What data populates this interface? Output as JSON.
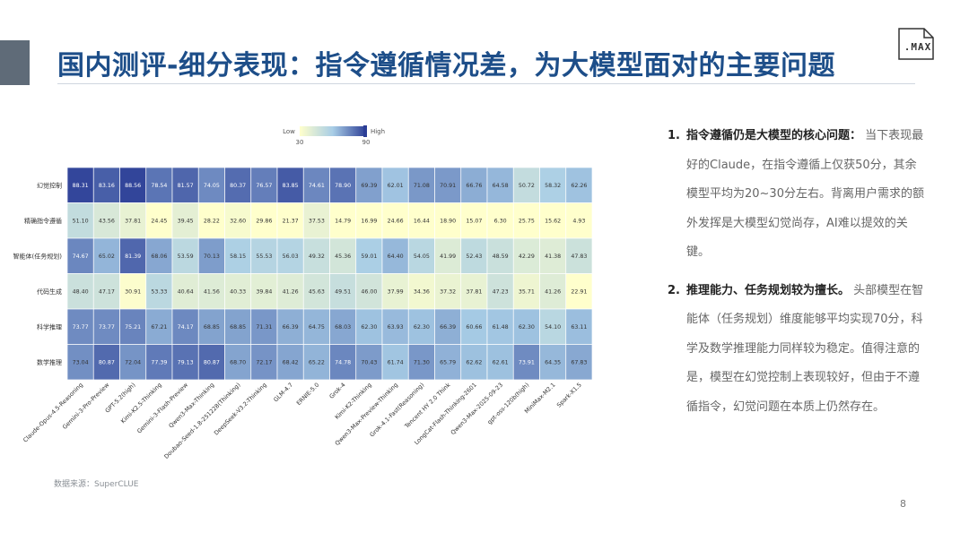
{
  "title": "国内测评-细分表现：指令遵循情况差，为大模型面对的主要问题",
  "logo": {
    "text": ".MAX",
    "icon": "max-logo-icon"
  },
  "source": "数据来源：SuperCLUE",
  "page_number": "8",
  "notes": [
    {
      "number": "1.",
      "lead": "指令遵循仍是大模型的核心问题：",
      "body": "当下表现最好的Claude，在指令遵循上仅获50分，其余模型平均为20~30分左右。背离用户需求的额外发挥是大模型幻觉尚存，AI难以提效的关键。"
    },
    {
      "number": "2.",
      "lead": "推理能力、任务规划较为擅长。",
      "body": "头部模型在智能体（任务规划）维度能够平均实现70分，科学及数学推理能力同样较为稳定。值得注意的是，模型在幻觉控制上表现较好，但由于不遵循指令，幻觉问题在本质上仍然存在。"
    }
  ],
  "chart_data": {
    "type": "heatmap",
    "title": "",
    "legend": {
      "low_label": "Low",
      "high_label": "High",
      "min_tick": "30",
      "max_tick": "90",
      "vmin": 30,
      "vmax": 90
    },
    "colors": {
      "low": "#ffffcc",
      "mid": "#a8cde6",
      "high": "#2c3e96"
    },
    "rows": [
      "幻觉控制",
      "精确指令遵循",
      "智能体(任务规划)",
      "代码生成",
      "科学推理",
      "数学推理"
    ],
    "columns": [
      "Claude-Opus-4.5-Reasoning",
      "Gemini-3-Pro-Preview",
      "GPT-5.2(high)",
      "Kimi-K2.5-Thinking",
      "Gemini-3-Flash-Preview",
      "Qwen3-Max-Thinking",
      "Doubao-Seed-1.8-251228(Thinking)",
      "DeepSeek-V3.2-Thinking",
      "GLM-4.7",
      "ERNIE-5.0",
      "Grok-4",
      "Kimi-K2-Thinking",
      "Qwen3-Max-Preview-Thinking",
      "Grok-4.1-Fast(Reasoning)",
      "Tencent HY 2.0 Think",
      "LongCat-Flash-Thinking-2601",
      "Qwen3-Max-2025-09-23",
      "gpt-oss-120b(high)",
      "MiniMax-M2.1",
      "Spark-X1.5"
    ],
    "values": [
      [
        88.31,
        83.16,
        88.56,
        78.54,
        81.57,
        74.05,
        80.37,
        76.57,
        83.85,
        74.61,
        78.9,
        69.39,
        62.01,
        71.08,
        70.91,
        66.76,
        64.58,
        50.72,
        58.32,
        62.26
      ],
      [
        51.1,
        43.56,
        37.81,
        24.45,
        39.45,
        28.22,
        32.6,
        29.86,
        21.37,
        37.53,
        14.79,
        16.99,
        24.66,
        16.44,
        18.9,
        15.07,
        6.3,
        25.75,
        15.62,
        4.93
      ],
      [
        74.67,
        65.02,
        81.39,
        68.06,
        53.59,
        70.13,
        58.15,
        55.53,
        56.03,
        49.32,
        45.36,
        59.01,
        64.4,
        54.05,
        41.99,
        52.43,
        48.59,
        42.29,
        41.38,
        47.83
      ],
      [
        48.4,
        47.17,
        30.91,
        53.33,
        40.64,
        41.56,
        40.33,
        39.84,
        41.26,
        45.63,
        49.51,
        46.0,
        37.99,
        34.36,
        37.32,
        37.81,
        47.23,
        35.71,
        41.26,
        22.91
      ],
      [
        73.77,
        73.77,
        75.21,
        67.21,
        74.17,
        68.85,
        68.85,
        71.31,
        66.39,
        64.75,
        68.03,
        62.3,
        63.93,
        62.3,
        66.39,
        60.66,
        61.48,
        62.3,
        54.1,
        63.11
      ],
      [
        73.04,
        80.87,
        72.04,
        77.39,
        79.13,
        80.87,
        68.7,
        72.17,
        68.42,
        65.22,
        74.78,
        70.43,
        61.74,
        71.3,
        65.79,
        62.62,
        62.61,
        73.91,
        64.35,
        67.83
      ]
    ]
  }
}
